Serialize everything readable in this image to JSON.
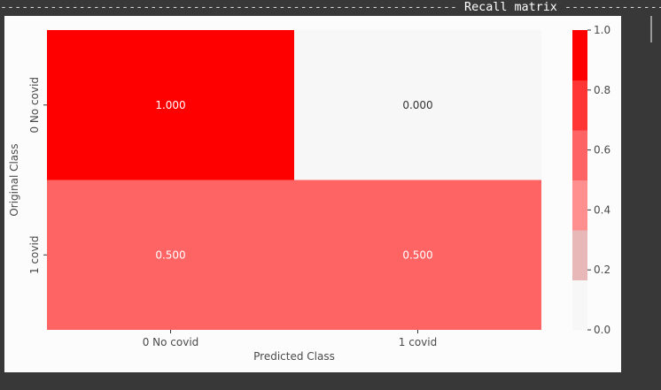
{
  "header": {
    "dash_left": "----------------------------------------------------------------",
    "title": " Recall matrix ",
    "dash_right": "------------------"
  },
  "colors": {
    "page_bg": "#383838",
    "panel_bg": "#fcfcfc",
    "colormap": [
      "#f7f7f7",
      "#e8b7b7",
      "#ff8f8f",
      "#ff6464",
      "#ff3535",
      "#ff0000"
    ]
  },
  "chart_data": {
    "type": "heatmap",
    "title": "Recall matrix",
    "xlabel": "Predicted Class",
    "ylabel": "Original Class",
    "x_categories": [
      "0 No covid",
      "1 covid"
    ],
    "y_categories": [
      "0 No covid",
      "1 covid"
    ],
    "values": [
      [
        1.0,
        0.0
      ],
      [
        0.5,
        0.5
      ]
    ],
    "annotations": [
      [
        "1.000",
        "0.000"
      ],
      [
        "0.500",
        "0.500"
      ]
    ],
    "colorbar": {
      "range": [
        0.0,
        1.0
      ],
      "ticks": [
        0.0,
        0.2,
        0.4,
        0.6,
        0.8,
        1.0
      ],
      "tick_labels": [
        "0.0",
        "0.2",
        "0.4",
        "0.6",
        "0.8",
        "1.0"
      ]
    }
  }
}
